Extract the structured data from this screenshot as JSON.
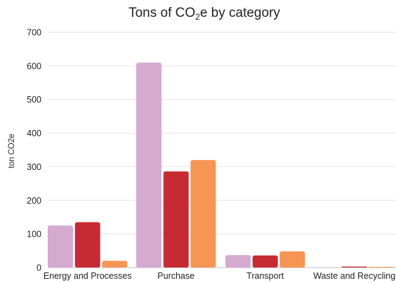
{
  "chart_data": {
    "type": "bar",
    "title_main": "Tons of CO",
    "title_sub": "2",
    "title_tail": "e by category",
    "ylabel": "ton CO2e",
    "xlabel": "",
    "ylim": [
      0,
      700
    ],
    "yticks": [
      0,
      100,
      200,
      300,
      400,
      500,
      600,
      700
    ],
    "grid": true,
    "categories": [
      "Energy and Processes",
      "Purchase",
      "Transport",
      "Waste and Recycling"
    ],
    "series": [
      {
        "color": "#d4aad0",
        "values": [
          125,
          610,
          37,
          0
        ]
      },
      {
        "color": "#c62b33",
        "values": [
          135,
          286,
          36,
          3
        ]
      },
      {
        "color": "#f79555",
        "values": [
          20,
          320,
          48,
          2
        ]
      }
    ]
  }
}
